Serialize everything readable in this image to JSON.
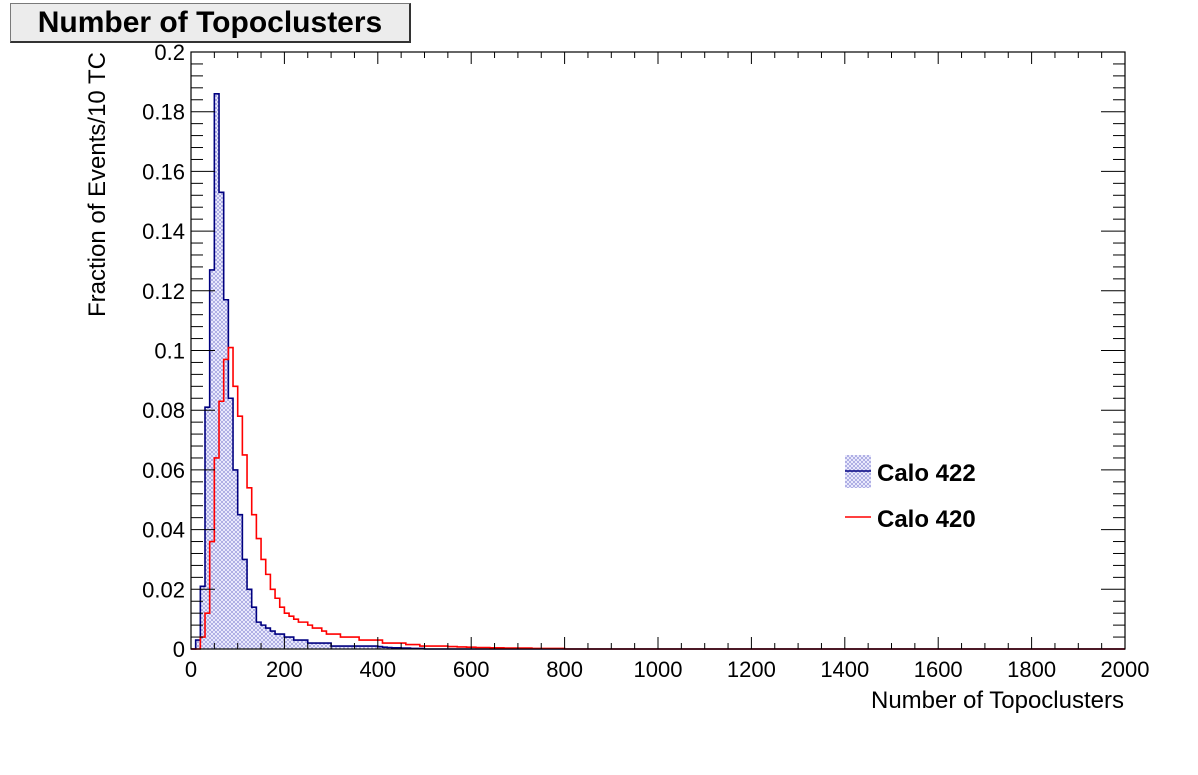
{
  "chart_data": {
    "type": "histogram",
    "title": "Number of Topoclusters",
    "xlabel": "Number of Topoclusters",
    "ylabel": "Fraction of Events/10 TC",
    "xlim": [
      0,
      2000
    ],
    "ylim": [
      0,
      0.2
    ],
    "x_ticks": [
      "0",
      "200",
      "400",
      "600",
      "800",
      "1000",
      "1200",
      "1400",
      "1600",
      "1800",
      "2000"
    ],
    "y_ticks": [
      "0",
      "0.02",
      "0.04",
      "0.06",
      "0.08",
      "0.1",
      "0.12",
      "0.14",
      "0.16",
      "0.18",
      "0.2"
    ],
    "bin_width": 10,
    "legend_position": "right",
    "series": [
      {
        "name": "Calo 422",
        "color": "#000080",
        "fill": "hatched-lavender",
        "values": [
          0,
          0.003,
          0.021,
          0.081,
          0.127,
          0.186,
          0.153,
          0.117,
          0.084,
          0.06,
          0.045,
          0.03,
          0.02,
          0.014,
          0.009,
          0.008,
          0.007,
          0.006,
          0.005,
          0.005,
          0.004,
          0.004,
          0.003,
          0.003,
          0.003,
          0.002,
          0.002,
          0.002,
          0.002,
          0.002,
          0.001,
          0.001,
          0.001,
          0.001,
          0.001,
          0.001,
          0.001,
          0.001,
          0.001,
          0.001,
          0.0008,
          0.0006,
          0.0005,
          0.0004,
          0.0004,
          0.0003,
          0.0003,
          0.0002,
          0.0002,
          0.0002
        ]
      },
      {
        "name": "Calo 420",
        "color": "#ff0000",
        "fill": "none",
        "values": [
          0,
          0,
          0.004,
          0.012,
          0.036,
          0.064,
          0.083,
          0.097,
          0.101,
          0.088,
          0.078,
          0.065,
          0.054,
          0.045,
          0.037,
          0.03,
          0.025,
          0.02,
          0.017,
          0.014,
          0.012,
          0.011,
          0.01,
          0.009,
          0.009,
          0.008,
          0.007,
          0.007,
          0.006,
          0.005,
          0.005,
          0.005,
          0.004,
          0.004,
          0.004,
          0.004,
          0.003,
          0.003,
          0.003,
          0.003,
          0.003,
          0.002,
          0.002,
          0.002,
          0.002,
          0.002,
          0.0015,
          0.0015,
          0.0015,
          0.001,
          0.001,
          0.001,
          0.001,
          0.001,
          0.001,
          0.0008,
          0.0008,
          0.0007,
          0.0007,
          0.0006,
          0.0006,
          0.0005,
          0.0005,
          0.0005,
          0.0004,
          0.0004,
          0.0004,
          0.0003,
          0.0003,
          0.0003,
          0.0003,
          0.0003,
          0.0003,
          0.0002,
          0.0002,
          0.0002,
          0.0002,
          0.0002,
          0.0002,
          0.0002
        ]
      }
    ]
  }
}
